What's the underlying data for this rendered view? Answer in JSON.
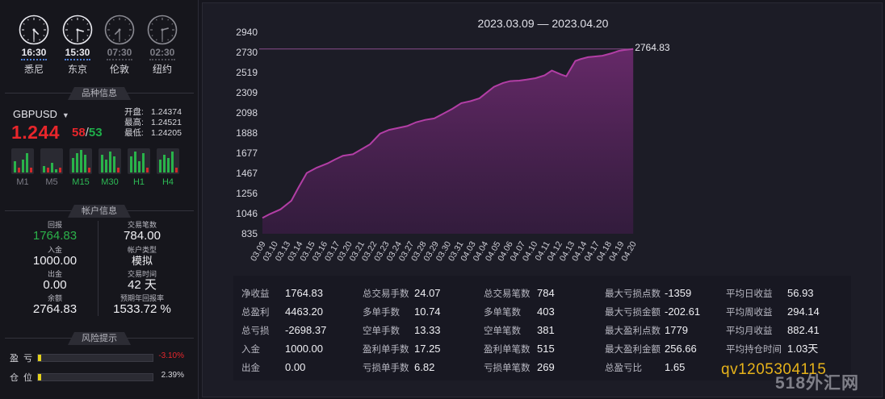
{
  "clocks": [
    {
      "time": "16:30",
      "city": "悉尼",
      "active": true,
      "h": 4,
      "m": 30
    },
    {
      "time": "15:30",
      "city": "东京",
      "active": true,
      "h": 3,
      "m": 30
    },
    {
      "time": "07:30",
      "city": "伦敦",
      "active": false,
      "h": 7,
      "m": 30
    },
    {
      "time": "02:30",
      "city": "纽约",
      "active": false,
      "h": 2,
      "m": 30
    }
  ],
  "sections": {
    "product": "品种信息",
    "account": "帐户信息",
    "risk": "风险提示"
  },
  "quote": {
    "symbol": "GBPUSD",
    "price_main": "1.244",
    "bid_tail": "58",
    "slash": "/",
    "ask_tail": "53",
    "open_label": "开盘:",
    "open": "1.24374",
    "high_label": "最高:",
    "high": "1.24521",
    "low_label": "最低:",
    "low": "1.24205"
  },
  "timeframes": [
    {
      "name": "M1",
      "active": false
    },
    {
      "name": "M5",
      "active": false
    },
    {
      "name": "M15",
      "active": true
    },
    {
      "name": "M30",
      "active": true
    },
    {
      "name": "H1",
      "active": true
    },
    {
      "name": "H4",
      "active": true
    }
  ],
  "account": {
    "return_label": "回报",
    "return_value": "1764.83",
    "trades_label": "交易笔数",
    "trades_value": "784.00",
    "deposit_label": "入金",
    "deposit_value": "1000.00",
    "type_label": "帐户类型",
    "type_value": "模拟",
    "withdraw_label": "出金",
    "withdraw_value": "0.00",
    "duration_label": "交易时间",
    "duration_value": "42 天",
    "balance_label": "余额",
    "balance_value": "2764.83",
    "annual_label": "预期年回报率",
    "annual_value": "1533.72 %"
  },
  "risk": {
    "pl_label": "盈亏",
    "pl_value": "-3.10%",
    "pl_level": 0.031,
    "pos_label": "仓位",
    "pos_value": "2.39%",
    "pos_level": 0.0239
  },
  "colors": {
    "up": "#1fae4a",
    "down": "#e8262b",
    "accent": "#b23ea5",
    "highlight": "#e4d21c"
  },
  "chart_data": {
    "type": "area",
    "title": "2023.03.09 — 2023.04.20",
    "xlabel": "",
    "ylabel": "",
    "ylim": [
      835,
      2940
    ],
    "yticks": [
      835,
      1046,
      1256,
      1467,
      1677,
      1888,
      2098,
      2309,
      2519,
      2730,
      2940
    ],
    "categories": [
      "03.09",
      "03.10",
      "03.13",
      "03.14",
      "03.15",
      "03.16",
      "03.17",
      "03.20",
      "03.21",
      "03.22",
      "03.23",
      "03.24",
      "03.27",
      "03.28",
      "03.29",
      "03.30",
      "03.31",
      "04.03",
      "04.04",
      "04.05",
      "04.06",
      "04.07",
      "04.10",
      "04.11",
      "04.12",
      "04.13",
      "04.14",
      "04.17",
      "04.18",
      "04.19",
      "04.20"
    ],
    "points": [
      [
        0.0,
        1000
      ],
      [
        0.4,
        1040
      ],
      [
        1.0,
        1090
      ],
      [
        1.6,
        1180
      ],
      [
        2.0,
        1320
      ],
      [
        2.45,
        1470
      ],
      [
        3.0,
        1525
      ],
      [
        3.6,
        1570
      ],
      [
        4.0,
        1610
      ],
      [
        4.45,
        1650
      ],
      [
        5.0,
        1665
      ],
      [
        5.5,
        1720
      ],
      [
        5.95,
        1770
      ],
      [
        6.5,
        1880
      ],
      [
        7.0,
        1920
      ],
      [
        7.5,
        1940
      ],
      [
        8.0,
        1960
      ],
      [
        8.5,
        2000
      ],
      [
        9.0,
        2025
      ],
      [
        9.5,
        2040
      ],
      [
        10.0,
        2090
      ],
      [
        10.5,
        2140
      ],
      [
        11.0,
        2200
      ],
      [
        11.5,
        2220
      ],
      [
        12.0,
        2250
      ],
      [
        12.4,
        2310
      ],
      [
        12.8,
        2370
      ],
      [
        13.3,
        2410
      ],
      [
        13.7,
        2430
      ],
      [
        14.2,
        2435
      ],
      [
        14.6,
        2445
      ],
      [
        15.1,
        2460
      ],
      [
        15.6,
        2490
      ],
      [
        16.0,
        2540
      ],
      [
        16.5,
        2500
      ],
      [
        16.8,
        2480
      ],
      [
        17.3,
        2640
      ],
      [
        17.6,
        2660
      ],
      [
        18.0,
        2680
      ],
      [
        18.3,
        2685
      ],
      [
        18.8,
        2695
      ],
      [
        19.3,
        2720
      ],
      [
        19.7,
        2745
      ],
      [
        20.0,
        2755
      ],
      [
        20.5,
        2764.83
      ]
    ],
    "reference_line": 2764.83,
    "last_label": "2764.83",
    "grid": false,
    "legend": "none"
  },
  "stats": [
    [
      [
        "净收益",
        "1764.83"
      ],
      [
        "总盈利",
        "4463.20"
      ],
      [
        "总亏损",
        "-2698.37"
      ],
      [
        "入金",
        "1000.00"
      ],
      [
        "出金",
        "0.00"
      ]
    ],
    [
      [
        "总交易手数",
        "24.07"
      ],
      [
        "多单手数",
        "10.74"
      ],
      [
        "空单手数",
        "13.33"
      ],
      [
        "盈利单手数",
        "17.25"
      ],
      [
        "亏损单手数",
        "6.82"
      ]
    ],
    [
      [
        "总交易笔数",
        "784"
      ],
      [
        "多单笔数",
        "403"
      ],
      [
        "空单笔数",
        "381"
      ],
      [
        "盈利单笔数",
        "515"
      ],
      [
        "亏损单笔数",
        "269"
      ]
    ],
    [
      [
        "最大亏损点数",
        "-1359"
      ],
      [
        "最大亏损金额",
        "-202.61"
      ],
      [
        "最大盈利点数",
        "1779"
      ],
      [
        "最大盈利金额",
        "256.66"
      ],
      [
        "总盈亏比",
        "1.65"
      ]
    ],
    [
      [
        "平均日收益",
        "56.93"
      ],
      [
        "平均周收益",
        "294.14"
      ],
      [
        "平均月收益",
        "882.41"
      ],
      [
        "平均持仓时间",
        "1.03天"
      ]
    ]
  ],
  "watermark": {
    "contact": "qv1205304115",
    "site": "518外汇网"
  }
}
